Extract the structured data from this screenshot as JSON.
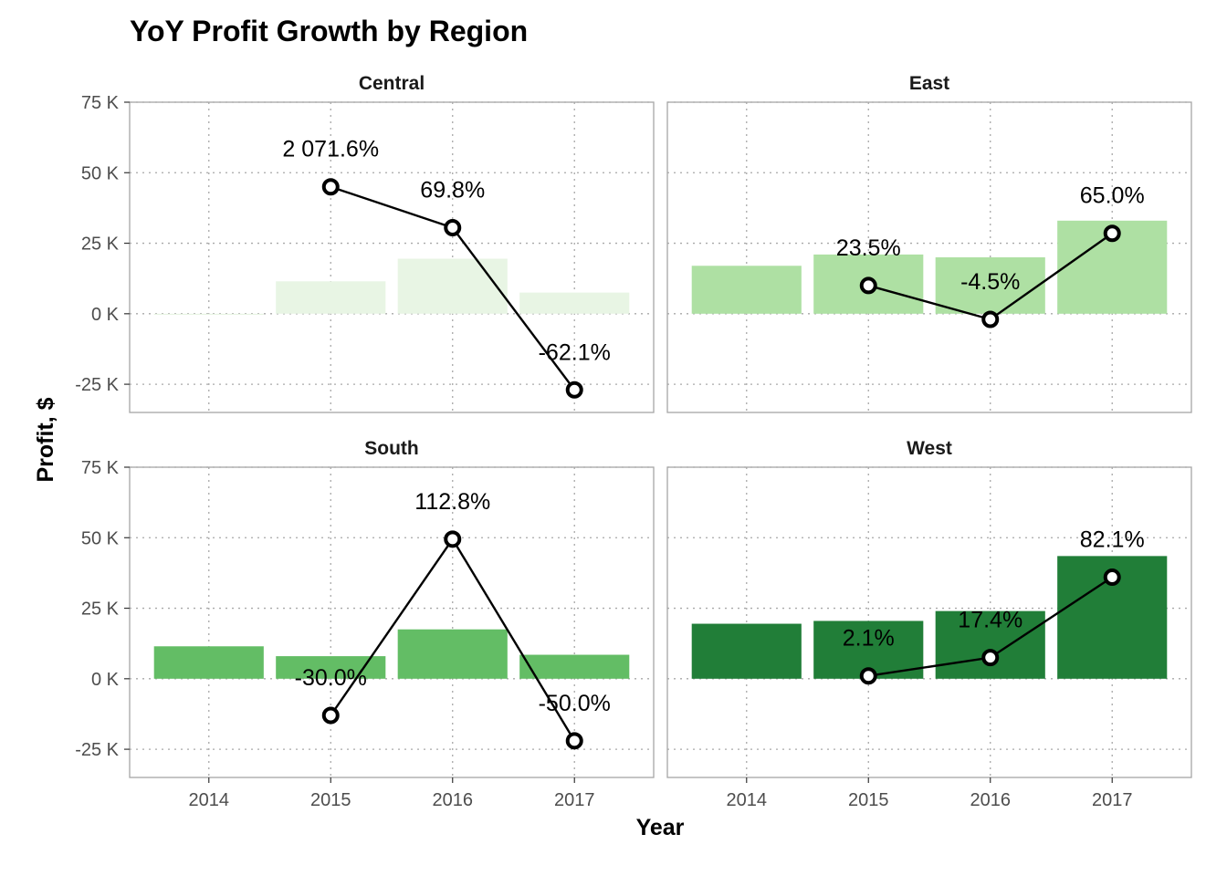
{
  "chart_data": {
    "type": "bar",
    "title": "YoY Profit Growth by Region",
    "xlabel": "Year",
    "ylabel": "Profit, $",
    "categories": [
      "2014",
      "2015",
      "2016",
      "2017"
    ],
    "ylim": [
      -35000,
      75000
    ],
    "yticks": [
      -25000,
      0,
      25000,
      50000,
      75000
    ],
    "ytick_labels": [
      "-25 K",
      "0 K",
      "25 K",
      "50 K",
      "75 K"
    ],
    "grid": true,
    "line_color": "#000000",
    "panels": [
      {
        "name": "Central",
        "bar_color": "#e8f5e4",
        "profit": [
          0,
          11500,
          19500,
          7500
        ],
        "growth_points": [
          null,
          45000,
          30500,
          -27000
        ],
        "growth_labels": [
          "",
          "2 071.6%",
          "69.8%",
          "-62.1%"
        ]
      },
      {
        "name": "East",
        "bar_color": "#aee0a3",
        "profit": [
          17000,
          21000,
          20000,
          33000
        ],
        "growth_points": [
          null,
          10000,
          -2000,
          28500
        ],
        "growth_labels": [
          "",
          "23.5%",
          "-4.5%",
          "65.0%"
        ]
      },
      {
        "name": "South",
        "bar_color": "#63bd65",
        "profit": [
          11500,
          8000,
          17500,
          8500
        ],
        "growth_points": [
          null,
          -13000,
          49500,
          -22000
        ],
        "growth_labels": [
          "",
          "-30.0%",
          "112.8%",
          "-50.0%"
        ]
      },
      {
        "name": "West",
        "bar_color": "#217e38",
        "profit": [
          19500,
          20500,
          24000,
          43500
        ],
        "growth_points": [
          null,
          1000,
          7500,
          36000
        ],
        "growth_labels": [
          "",
          "2.1%",
          "17.4%",
          "82.1%"
        ]
      }
    ]
  }
}
